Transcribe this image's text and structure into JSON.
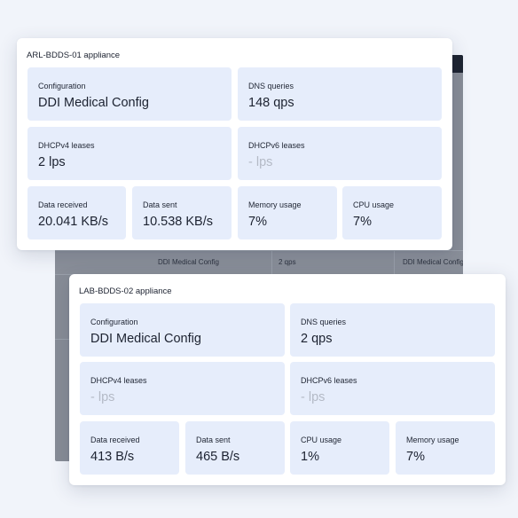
{
  "background_window": {
    "row_cells": [
      "DDI Medical Config",
      "2 qps",
      "DDI Medical Config"
    ]
  },
  "cards": [
    {
      "title": "ARL-BDDS-01 appliance",
      "tiles": [
        {
          "label": "Configuration",
          "value": "DDI Medical Config"
        },
        {
          "label": "DNS queries",
          "value": "148 qps"
        },
        {
          "label": "DHCPv4 leases",
          "value": "2 lps"
        },
        {
          "label": "DHCPv6 leases",
          "value": "- lps"
        },
        {
          "label": "Data received",
          "value": "20.041 KB/s"
        },
        {
          "label": "Data sent",
          "value": "10.538 KB/s"
        },
        {
          "label": "Memory usage",
          "value": "7%"
        },
        {
          "label": "CPU usage",
          "value": "7%"
        }
      ]
    },
    {
      "title": "LAB-BDDS-02 appliance",
      "tiles": [
        {
          "label": "Configuration",
          "value": "DDI Medical Config"
        },
        {
          "label": "DNS queries",
          "value": "2 qps"
        },
        {
          "label": "DHCPv4 leases",
          "value": "- lps"
        },
        {
          "label": "DHCPv6 leases",
          "value": "- lps"
        },
        {
          "label": "Data received",
          "value": "413 B/s"
        },
        {
          "label": "Data sent",
          "value": "465 B/s"
        },
        {
          "label": "CPU usage",
          "value": "1%"
        },
        {
          "label": "Memory usage",
          "value": "7%"
        }
      ]
    }
  ]
}
